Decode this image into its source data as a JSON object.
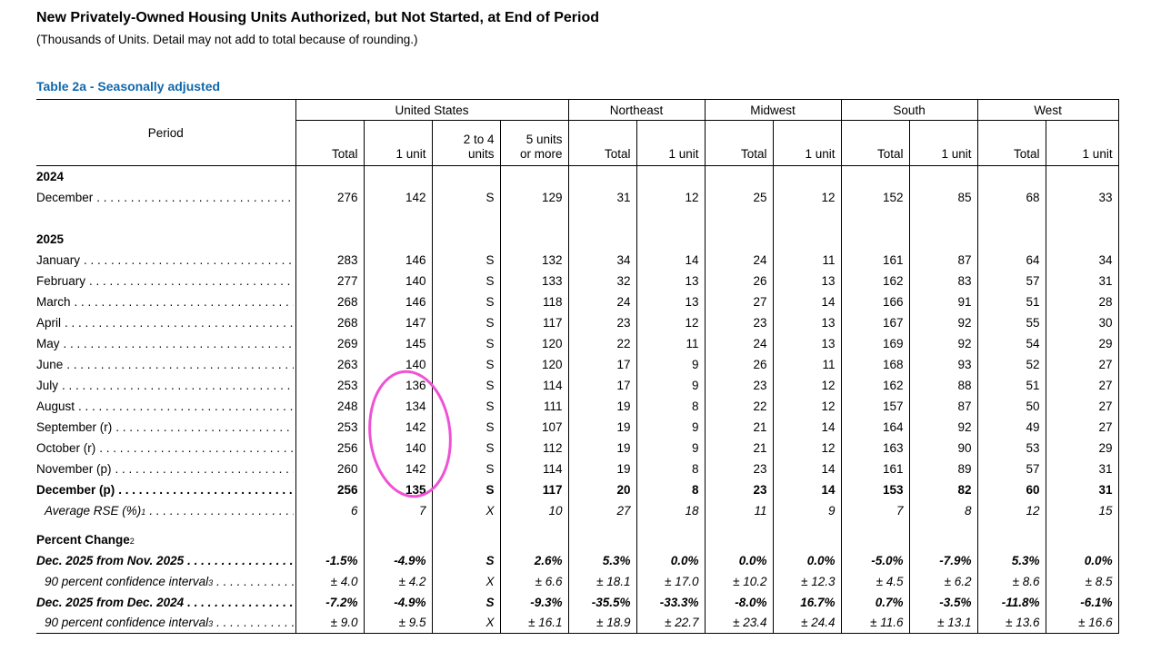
{
  "page": {
    "title": "New Privately-Owned Housing Units Authorized, but Not Started, at End of Period",
    "subtitle": "(Thousands of Units.  Detail may not add to total because of rounding.)",
    "table_label": "Table 2a - Seasonally adjusted",
    "table_label_color": "#0e68ae"
  },
  "table": {
    "period_header": "Period",
    "leader_fill": ". ",
    "groups": [
      {
        "label": "United States",
        "cols": [
          "Total",
          "1 unit",
          "2 to 4\nunits",
          "5 units\nor more"
        ]
      },
      {
        "label": "Northeast",
        "cols": [
          "Total",
          "1 unit"
        ]
      },
      {
        "label": "Midwest",
        "cols": [
          "Total",
          "1 unit"
        ]
      },
      {
        "label": "South",
        "cols": [
          "Total",
          "1 unit"
        ]
      },
      {
        "label": "West",
        "cols": [
          "Total",
          "1 unit"
        ]
      }
    ],
    "rows": [
      {
        "type": "section",
        "label": "2024"
      },
      {
        "type": "data",
        "label": "December",
        "dots": true,
        "values": [
          "276",
          "142",
          "S",
          "129",
          "31",
          "12",
          "25",
          "12",
          "152",
          "85",
          "68",
          "33"
        ]
      },
      {
        "type": "spacer"
      },
      {
        "type": "section",
        "label": "2025"
      },
      {
        "type": "data",
        "label": "January",
        "dots": true,
        "values": [
          "283",
          "146",
          "S",
          "132",
          "34",
          "14",
          "24",
          "11",
          "161",
          "87",
          "64",
          "34"
        ]
      },
      {
        "type": "data",
        "label": "February",
        "dots": true,
        "values": [
          "277",
          "140",
          "S",
          "133",
          "32",
          "13",
          "26",
          "13",
          "162",
          "83",
          "57",
          "31"
        ]
      },
      {
        "type": "data",
        "label": "March",
        "dots": true,
        "values": [
          "268",
          "146",
          "S",
          "118",
          "24",
          "13",
          "27",
          "14",
          "166",
          "91",
          "51",
          "28"
        ]
      },
      {
        "type": "data",
        "label": "April",
        "dots": true,
        "values": [
          "268",
          "147",
          "S",
          "117",
          "23",
          "12",
          "23",
          "13",
          "167",
          "92",
          "55",
          "30"
        ]
      },
      {
        "type": "data",
        "label": "May",
        "dots": true,
        "values": [
          "269",
          "145",
          "S",
          "120",
          "22",
          "11",
          "24",
          "13",
          "169",
          "92",
          "54",
          "29"
        ]
      },
      {
        "type": "data",
        "label": "June",
        "dots": true,
        "values": [
          "263",
          "140",
          "S",
          "120",
          "17",
          "9",
          "26",
          "11",
          "168",
          "93",
          "52",
          "27"
        ]
      },
      {
        "type": "data",
        "label": "July",
        "dots": true,
        "values": [
          "253",
          "136",
          "S",
          "114",
          "17",
          "9",
          "23",
          "12",
          "162",
          "88",
          "51",
          "27"
        ]
      },
      {
        "type": "data",
        "label": "August",
        "dots": true,
        "values": [
          "248",
          "134",
          "S",
          "111",
          "19",
          "8",
          "22",
          "12",
          "157",
          "87",
          "50",
          "27"
        ]
      },
      {
        "type": "data",
        "label": "September (r)",
        "dots": true,
        "values": [
          "253",
          "142",
          "S",
          "107",
          "19",
          "9",
          "21",
          "14",
          "164",
          "92",
          "49",
          "27"
        ]
      },
      {
        "type": "data",
        "label": "October (r)",
        "dots": true,
        "values": [
          "256",
          "140",
          "S",
          "112",
          "19",
          "9",
          "21",
          "12",
          "163",
          "90",
          "53",
          "29"
        ]
      },
      {
        "type": "data",
        "label": "November (p)",
        "dots": true,
        "values": [
          "260",
          "142",
          "S",
          "114",
          "19",
          "8",
          "23",
          "14",
          "161",
          "89",
          "57",
          "31"
        ]
      },
      {
        "type": "data",
        "label": "December (p)",
        "dots": true,
        "cls": "bold",
        "values": [
          "256",
          "135",
          "S",
          "117",
          "20",
          "8",
          "23",
          "14",
          "153",
          "82",
          "60",
          "31"
        ]
      },
      {
        "type": "data",
        "label": "Average RSE (%)",
        "sup": "1",
        "dots": true,
        "cls": "italic",
        "indent": true,
        "values": [
          "6",
          "7",
          "X",
          "10",
          "27",
          "18",
          "11",
          "9",
          "7",
          "8",
          "12",
          "15"
        ]
      },
      {
        "type": "gap"
      },
      {
        "type": "section",
        "label": "Percent Change",
        "sup": "2"
      },
      {
        "type": "data",
        "label": "Dec. 2025 from Nov. 2025",
        "dots": true,
        "cls": "bolditalic",
        "values": [
          "-1.5%",
          "-4.9%",
          "S",
          "2.6%",
          "5.3%",
          "0.0%",
          "0.0%",
          "0.0%",
          "-5.0%",
          "-7.9%",
          "5.3%",
          "0.0%"
        ]
      },
      {
        "type": "data",
        "label": "90 percent confidence interval",
        "sup": "3",
        "dots": true,
        "cls": "italic",
        "indent": true,
        "values": [
          "± 4.0",
          "± 4.2",
          "X",
          "± 6.6",
          "± 18.1",
          "± 17.0",
          "± 10.2",
          "± 12.3",
          "± 4.5",
          "± 6.2",
          "± 8.6",
          "± 8.5"
        ]
      },
      {
        "type": "data",
        "label": "Dec. 2025 from Dec. 2024",
        "dots": true,
        "cls": "bolditalic",
        "values": [
          "-7.2%",
          "-4.9%",
          "S",
          "-9.3%",
          "-35.5%",
          "-33.3%",
          "-8.0%",
          "16.7%",
          "0.7%",
          "-3.5%",
          "-11.8%",
          "-6.1%"
        ]
      },
      {
        "type": "data",
        "label": "90 percent confidence interval",
        "sup": "3",
        "dots": true,
        "cls": "italic",
        "indent": true,
        "values": [
          "± 9.0",
          "± 9.5",
          "X",
          "± 16.1",
          "± 18.9",
          "± 22.7",
          "± 23.4",
          "± 24.4",
          "± 11.6",
          "± 13.1",
          "± 13.6",
          "± 16.6"
        ]
      }
    ]
  },
  "annotation": {
    "color": "#ef52d5"
  }
}
